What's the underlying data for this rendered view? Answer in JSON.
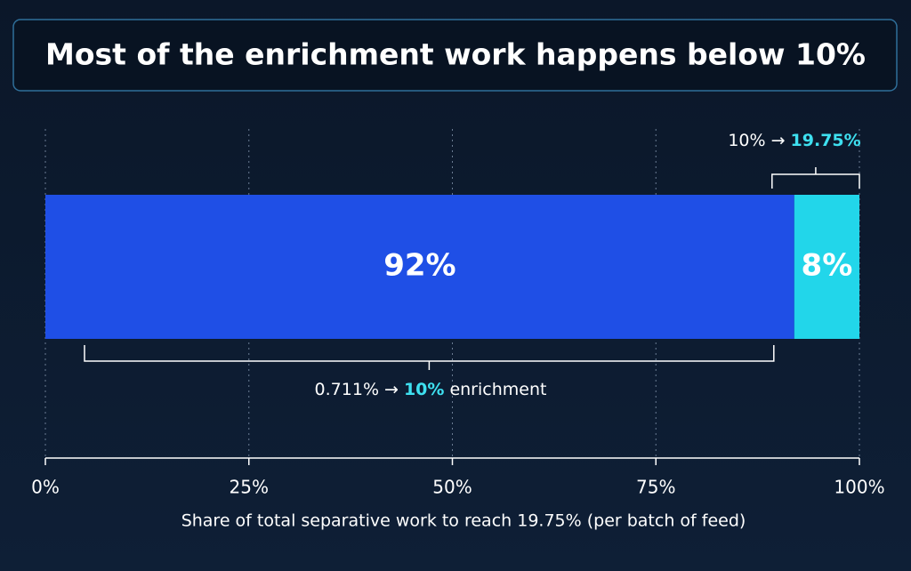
{
  "chart_data": {
    "type": "stacked-hbar",
    "title": "Most of the enrichment work happens below 10%",
    "values": [
      92,
      8
    ],
    "value_labels": [
      "92%",
      "8%"
    ],
    "colors": [
      "#1f4fe6",
      "#22d6ea"
    ],
    "xlim": [
      0,
      100
    ],
    "xticks": [
      {
        "value": 0,
        "label": "0%"
      },
      {
        "value": 25,
        "label": "25%"
      },
      {
        "value": 50,
        "label": "50%"
      },
      {
        "value": 75,
        "label": "75%"
      },
      {
        "value": 100,
        "label": "100%"
      }
    ],
    "grid": true,
    "x_label": "Share of total separative work to reach 19.75% (per batch of feed)",
    "annotations": [
      {
        "parts": [
          "10% →",
          "19.75%"
        ]
      },
      {
        "parts": [
          "0.711% →",
          "10%",
          "enrichment"
        ]
      }
    ]
  }
}
